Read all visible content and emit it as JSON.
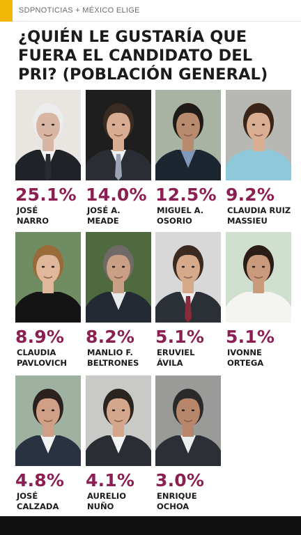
{
  "header": {
    "source": "SDPNOTICIAS + MÉXICO ELIGE"
  },
  "title": "¿QUIÉN LE GUSTARÍA QUE FUERA EL CANDIDATO DEL PRI? (POBLACIÓN GENERAL)",
  "colors": {
    "accent": "#f2b705",
    "value": "#8c1f52",
    "footer": "#111111"
  },
  "chart_data": {
    "type": "table",
    "title": "¿QUIÉN LE GUSTARÍA QUE FUERA EL CANDIDATO DEL PRI? (POBLACIÓN GENERAL)",
    "unit": "%",
    "rows": [
      {
        "name": [
          "JOSÉ",
          "NARRO"
        ],
        "label": "25.1%",
        "value": 25.1,
        "photo": {
          "bg": "#e9e6e2",
          "suit": "#1f2328",
          "skin": "#d8b6a3",
          "hair": "#ececec",
          "shirt": "#f4f4f4",
          "tie": "#2a2a33"
        }
      },
      {
        "name": [
          "JOSÉ  A.",
          "MEADE"
        ],
        "label": "14.0%",
        "value": 14.0,
        "photo": {
          "bg": "#1e1e1e",
          "suit": "#2a2d33",
          "skin": "#d9ad92",
          "hair": "#3a2c22",
          "shirt": "#eef0f2",
          "tie": "#9aa4b4"
        }
      },
      {
        "name": [
          "MIGUEL A.",
          "OSORIO"
        ],
        "label": "12.5%",
        "value": 12.5,
        "photo": {
          "bg": "#a8b3a3",
          "suit": "#1c2630",
          "skin": "#b98b6e",
          "hair": "#201b18",
          "shirt": "#7f97b8",
          "tie": ""
        }
      },
      {
        "name": [
          "CLAUDIA RUIZ",
          "MASSIEU"
        ],
        "label": "9.2%",
        "value": 9.2,
        "photo": {
          "bg": "#b7b7b4",
          "suit": "#8fc8d8",
          "skin": "#d9ae92",
          "hair": "#3b2418",
          "shirt": "#8fc8d8",
          "tie": ""
        }
      },
      {
        "name": [
          "CLAUDIA",
          "PAVLOVICH"
        ],
        "label": "8.9%",
        "value": 8.9,
        "photo": {
          "bg": "#6f8c63",
          "suit": "#141414",
          "skin": "#e0b79b",
          "hair": "#9a6a38",
          "shirt": "#141414",
          "tie": ""
        }
      },
      {
        "name": [
          "MANLIO F.",
          "BELTRONES"
        ],
        "label": "8.2%",
        "value": 8.2,
        "photo": {
          "bg": "#4e6a3e",
          "suit": "#232a33",
          "skin": "#c9a086",
          "hair": "#6f6a66",
          "shirt": "#e8eaec",
          "tie": ""
        }
      },
      {
        "name": [
          "ERUVIEL",
          "ÁVILA"
        ],
        "label": "5.1%",
        "value": 5.1,
        "photo": {
          "bg": "#d8d8d8",
          "suit": "#2b2f36",
          "skin": "#d7a98b",
          "hair": "#3a2a22",
          "shirt": "#f1f1f1",
          "tie": "#8a2a3a"
        }
      },
      {
        "name": [
          "IVONNE",
          "ORTEGA"
        ],
        "label": "5.1%",
        "value": 5.1,
        "photo": {
          "bg": "#cfe0cf",
          "suit": "#f4f4f0",
          "skin": "#c99a7c",
          "hair": "#2a1c16",
          "shirt": "#f4f4f0",
          "tie": ""
        }
      },
      {
        "name": [
          "JOSÉ",
          "CALZADA"
        ],
        "label": "4.8%",
        "value": 4.8,
        "photo": {
          "bg": "#9fb2a2",
          "suit": "#2a3140",
          "skin": "#cf9f86",
          "hair": "#2b2220",
          "shirt": "#f2f2f2",
          "tie": ""
        }
      },
      {
        "name": [
          "AURELIO",
          "NUÑO"
        ],
        "label": "4.1%",
        "value": 4.1,
        "photo": {
          "bg": "#c9c9c7",
          "suit": "#2a2d33",
          "skin": "#d4a78c",
          "hair": "#2a231f",
          "shirt": "#f3f3f3",
          "tie": ""
        }
      },
      {
        "name": [
          "ENRIQUE",
          "OCHOA"
        ],
        "label": "3.0%",
        "value": 3.0,
        "photo": {
          "bg": "#9a9a98",
          "suit": "#2c2f35",
          "skin": "#b8876b",
          "hair": "#2a2a2a",
          "shirt": "#eceef0",
          "tie": ""
        }
      }
    ]
  }
}
